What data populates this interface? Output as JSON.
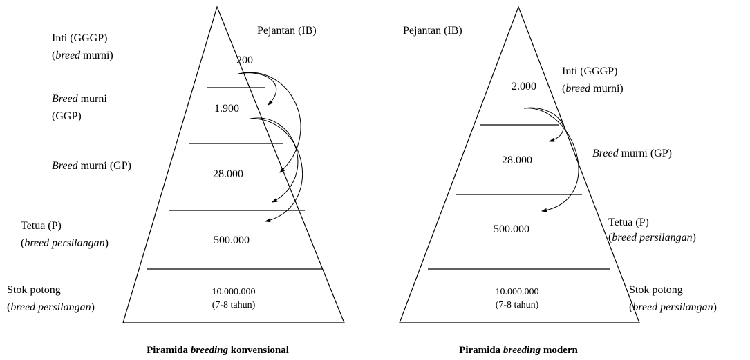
{
  "left": {
    "pejantan": "Pejantan (IB)",
    "inti": {
      "title": "Inti (GGGP)",
      "sub": [
        "(",
        "breed",
        " murni)"
      ]
    },
    "ggp": {
      "line1": [
        "Breed",
        " murni"
      ],
      "line2": "(GGP)"
    },
    "gp": [
      "Breed",
      " murni (GP)"
    ],
    "tetua": {
      "title": "Tetua (P)",
      "sub": [
        "(",
        "breed persilangan",
        ")"
      ]
    },
    "stok": {
      "title": "Stok potong",
      "sub": [
        "(",
        "breed persilangan",
        ")"
      ]
    },
    "levels": [
      "200",
      "1.900",
      "28.000",
      "500.000",
      "10.000.000"
    ],
    "duration": "(7-8 tahun)",
    "caption": [
      "Piramida ",
      "breeding",
      " konvensional"
    ]
  },
  "right": {
    "pejantan": "Pejantan (IB)",
    "inti": {
      "title": "Inti (GGGP)",
      "sub": [
        "(",
        "breed",
        " murni)"
      ]
    },
    "gp": [
      "Breed",
      " murni (GP)"
    ],
    "tetua": {
      "title": "Tetua (P)",
      "sub": [
        "(",
        "breed persilangan",
        ")"
      ]
    },
    "stok": {
      "title": "Stok potong",
      "sub": [
        "(",
        "breed persilangan",
        ")"
      ]
    },
    "levels": [
      "2.000",
      "28.000",
      "500.000",
      "10.000.000"
    ],
    "duration": "(7-8 tahun)",
    "caption": [
      "Piramida ",
      "breeding",
      " modern"
    ]
  }
}
